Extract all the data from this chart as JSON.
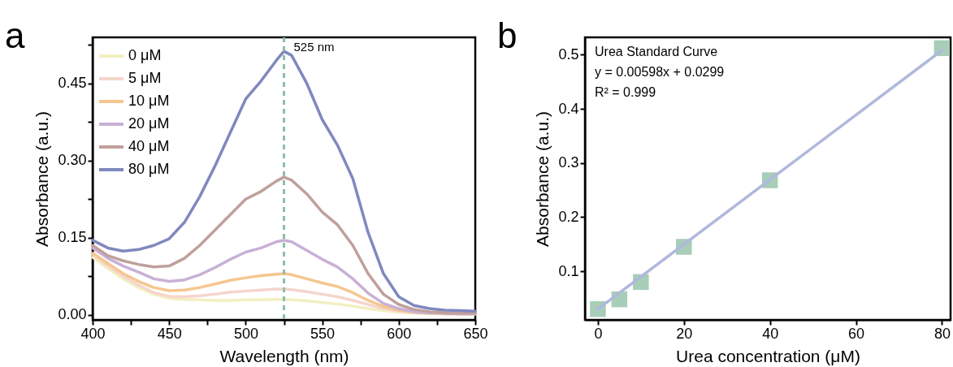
{
  "chart_data": [
    {
      "type": "line",
      "title": "a",
      "xlabel": "Wavelength (nm)",
      "ylabel": "Absorbance (a.u.)",
      "x": [
        400,
        410,
        420,
        430,
        440,
        450,
        460,
        470,
        480,
        490,
        500,
        510,
        520,
        525,
        530,
        540,
        550,
        560,
        570,
        580,
        590,
        600,
        610,
        620,
        630,
        640,
        650
      ],
      "series": [
        {
          "name": "0 μM",
          "color": "#f2efc2",
          "values": [
            0.112,
            0.09,
            0.07,
            0.053,
            0.04,
            0.032,
            0.03,
            0.029,
            0.028,
            0.028,
            0.029,
            0.029,
            0.03,
            0.03,
            0.029,
            0.027,
            0.024,
            0.021,
            0.017,
            0.012,
            0.008,
            0.005,
            0.003,
            0.002,
            0.002,
            0.001,
            0.001
          ]
        },
        {
          "name": "5 μM",
          "color": "#f5d5cc",
          "values": [
            0.118,
            0.095,
            0.075,
            0.058,
            0.043,
            0.036,
            0.035,
            0.037,
            0.04,
            0.044,
            0.046,
            0.048,
            0.05,
            0.05,
            0.049,
            0.045,
            0.04,
            0.035,
            0.028,
            0.02,
            0.012,
            0.007,
            0.004,
            0.003,
            0.002,
            0.002,
            0.002
          ]
        },
        {
          "name": "10 μM",
          "color": "#f5c68e",
          "values": [
            0.12,
            0.1,
            0.08,
            0.065,
            0.053,
            0.047,
            0.048,
            0.053,
            0.06,
            0.067,
            0.072,
            0.076,
            0.079,
            0.08,
            0.078,
            0.07,
            0.062,
            0.055,
            0.043,
            0.028,
            0.016,
            0.009,
            0.005,
            0.003,
            0.002,
            0.002,
            0.002
          ]
        },
        {
          "name": "20 μM",
          "color": "#c8b0d6",
          "values": [
            0.13,
            0.11,
            0.095,
            0.083,
            0.07,
            0.065,
            0.068,
            0.078,
            0.092,
            0.108,
            0.122,
            0.13,
            0.142,
            0.145,
            0.142,
            0.125,
            0.108,
            0.093,
            0.07,
            0.042,
            0.022,
            0.012,
            0.006,
            0.004,
            0.003,
            0.002,
            0.002
          ]
        },
        {
          "name": "40 μM",
          "color": "#c0a09c",
          "values": [
            0.135,
            0.115,
            0.105,
            0.098,
            0.093,
            0.095,
            0.11,
            0.135,
            0.165,
            0.195,
            0.225,
            0.24,
            0.26,
            0.268,
            0.262,
            0.235,
            0.2,
            0.175,
            0.135,
            0.08,
            0.04,
            0.02,
            0.01,
            0.006,
            0.004,
            0.003,
            0.003
          ]
        },
        {
          "name": "80 μM",
          "color": "#8088be",
          "values": [
            0.145,
            0.13,
            0.124,
            0.127,
            0.135,
            0.148,
            0.18,
            0.23,
            0.29,
            0.355,
            0.42,
            0.455,
            0.495,
            0.513,
            0.505,
            0.45,
            0.38,
            0.33,
            0.265,
            0.16,
            0.08,
            0.035,
            0.018,
            0.012,
            0.009,
            0.008,
            0.007
          ]
        }
      ],
      "xlim": [
        400,
        650
      ],
      "xticks": [
        400,
        {
          "value": 425,
          "label": null
        },
        450,
        {
          "value": 475,
          "label": null
        },
        500,
        {
          "value": 525,
          "label": null
        },
        550,
        {
          "value": 575,
          "label": null
        },
        600,
        {
          "value": 625,
          "label": null
        },
        650
      ],
      "ylim": [
        -0.01,
        0.54
      ],
      "yticks": [
        {
          "value": 0,
          "label": "0.00"
        },
        {
          "value": 0.075,
          "label": null
        },
        {
          "value": 0.15,
          "label": "0.15"
        },
        {
          "value": 0.225,
          "label": null
        },
        {
          "value": 0.3,
          "label": "0.30"
        },
        {
          "value": 0.375,
          "label": null
        },
        {
          "value": 0.45,
          "label": "0.45"
        },
        {
          "value": 0.525,
          "label": null
        }
      ],
      "ref_lines": [
        {
          "axis": "x",
          "value": 525,
          "label": "525 nm",
          "color": "#8cc0a8",
          "line_style": "dashed"
        }
      ],
      "legend": "top left",
      "line_style": "solid"
    },
    {
      "type": "scatter",
      "title": "b",
      "xlabel": "Urea concentration (μM)",
      "ylabel": "Absorbance (a.u.)",
      "annotations": [
        "Urea Standard Curve",
        "y = 0.00598x + 0.0299",
        "R² = 0.999"
      ],
      "x": [
        0,
        5,
        10,
        20,
        40,
        80
      ],
      "series": [
        {
          "color": "#a8cdb8",
          "marker": "square",
          "values": [
            0.03,
            0.048,
            0.08,
            0.145,
            0.268,
            0.512
          ]
        },
        {
          "type": "line",
          "color": "#b0b8dc",
          "x": [
            0,
            80
          ],
          "values": [
            0.03,
            0.508
          ]
        }
      ],
      "xlim": [
        -3,
        82
      ],
      "xticks": [
        0,
        20,
        40,
        60,
        80
      ],
      "ylim": [
        0.01,
        0.532
      ],
      "yticks": [
        0.1,
        0.2,
        0.3,
        0.4,
        0.5
      ],
      "line_style": "solid"
    }
  ]
}
